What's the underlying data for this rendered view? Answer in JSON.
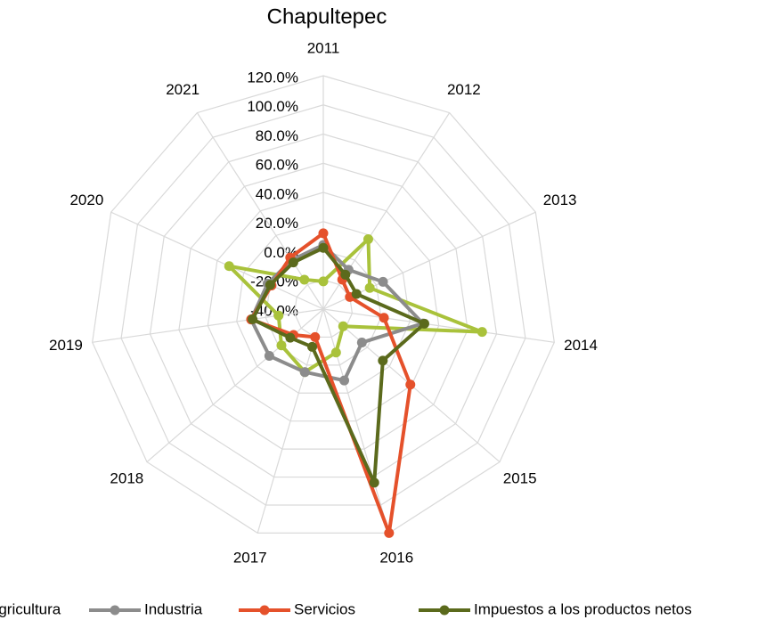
{
  "chart_data": {
    "type": "radar",
    "title": "Chapultepec",
    "categories": [
      "2011",
      "2012",
      "2013",
      "2014",
      "2015",
      "2016",
      "2017",
      "2018",
      "2019",
      "2020",
      "2021"
    ],
    "ylim": [
      -40,
      120
    ],
    "yticks": [
      {
        "value": -40,
        "label": "-40.0%"
      },
      {
        "value": -20,
        "label": "-20.0%"
      },
      {
        "value": 0,
        "label": "0.0%"
      },
      {
        "value": 20,
        "label": "20.0%"
      },
      {
        "value": 40,
        "label": "40.0%"
      },
      {
        "value": 60,
        "label": "60.0%"
      },
      {
        "value": 80,
        "label": "80.0%"
      },
      {
        "value": 100,
        "label": "100.0%"
      },
      {
        "value": 120,
        "label": "120.0%"
      }
    ],
    "grid": true,
    "series": [
      {
        "name": "Agricultura",
        "color": "#a9c23b",
        "values": [
          -21,
          17,
          -5,
          70,
          -22,
          -9,
          5,
          -2,
          -9,
          31,
          -16
        ]
      },
      {
        "name": "Industria",
        "color": "#8c8c8c",
        "values": [
          4,
          -8,
          5,
          29,
          -5,
          11,
          5,
          9,
          10,
          2,
          0
        ]
      },
      {
        "name": "Servicios",
        "color": "#e5512b",
        "values": [
          12,
          -16,
          -20,
          2,
          39,
          120,
          -20,
          -13,
          10,
          -1,
          2
        ]
      },
      {
        "name": "Impuestos a los productos netos",
        "color": "#5b6a1c",
        "values": [
          2,
          -12,
          -15,
          30,
          14,
          84,
          -13,
          -10,
          9,
          0,
          -2
        ]
      }
    ]
  }
}
